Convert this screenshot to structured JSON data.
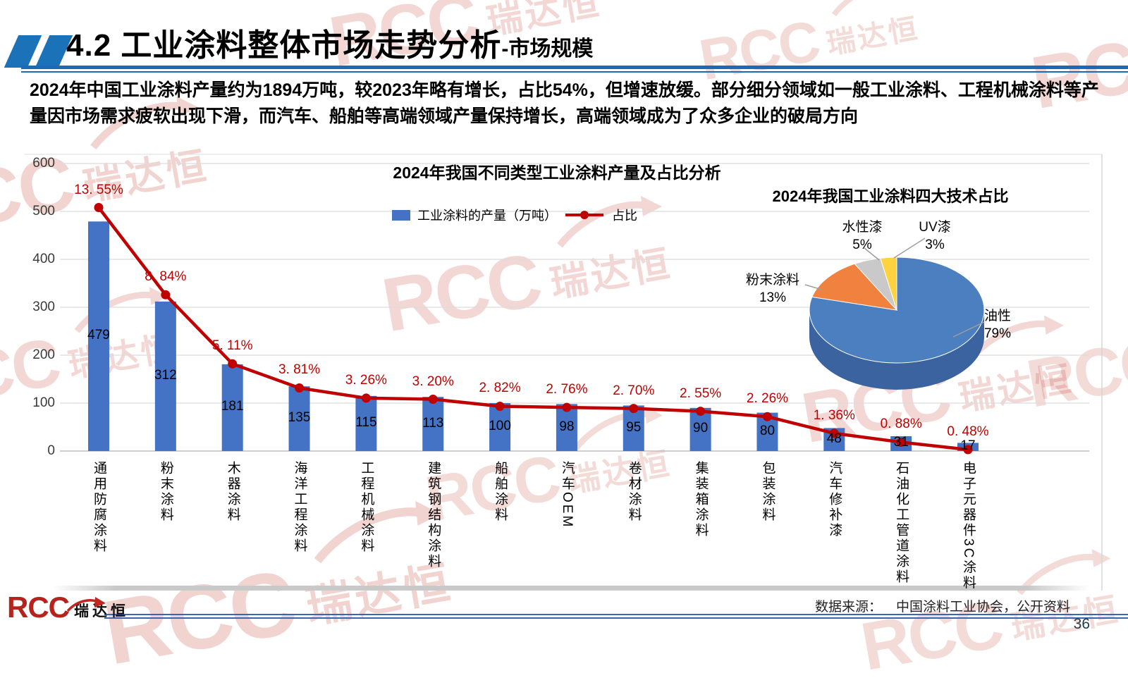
{
  "header": {
    "section_no": "4.2",
    "title": "工业涂料整体市场走势分析",
    "subtitle": "-市场规模",
    "accent_blue": "#1B6AB8"
  },
  "summary": "2024年中国工业涂料产量约为1894万吨，较2023年略有增长，占比54%，但增速放缓。部分细分领域如一般工业涂料、工程机械涂料等产量因市场需求疲软出现下滑，而汽车、船舶等高端领域产量保持增长，高端领域成为了众多企业的破局方向",
  "watermark": {
    "brand": "RCC",
    "brand_cn": "瑞达恒"
  },
  "chart_data": [
    {
      "type": "bar+line",
      "title": "2024年我国不同类型工业涂料产量及占比分析",
      "legend": [
        {
          "name": "工业涂料的产量（万吨）",
          "type": "bar",
          "color": "#4472C4"
        },
        {
          "name": "占比",
          "type": "line",
          "color": "#C00000"
        }
      ],
      "categories": [
        "通用防腐涂料",
        "粉末涂料",
        "木器涂料",
        "海洋工程涂料",
        "工程机械涂料",
        "建筑钢结构涂料",
        "船舶涂料",
        "汽车OEM",
        "卷材涂料",
        "集装箱涂料",
        "包装涂料",
        "汽车修补漆",
        "石油化工管道涂料",
        "电子元器件3C涂料"
      ],
      "series": [
        {
          "name": "工业涂料的产量（万吨）",
          "type": "bar",
          "values": [
            479,
            312,
            181,
            135,
            115,
            113,
            100,
            98,
            95,
            90,
            80,
            48,
            31,
            17
          ]
        },
        {
          "name": "占比",
          "type": "line",
          "values": [
            13.55,
            8.84,
            5.11,
            3.81,
            3.26,
            3.2,
            2.82,
            2.76,
            2.7,
            2.55,
            2.26,
            1.36,
            0.88,
            0.48
          ],
          "labels": [
            "13. 55%",
            "8. 84%",
            "5. 11%",
            "3. 81%",
            "3. 26%",
            "3. 20%",
            "2. 82%",
            "2. 76%",
            "2. 70%",
            "2. 55%",
            "2. 26%",
            "1. 36%",
            "0. 88%",
            "0. 48%"
          ]
        }
      ],
      "y_ticks": [
        0,
        100,
        200,
        300,
        400,
        500,
        600
      ],
      "ylim": [
        0,
        600
      ],
      "secondary_ylim": [
        0,
        16
      ],
      "grid": true,
      "legend_position": "top"
    },
    {
      "type": "pie",
      "style": "3d",
      "title": "2024年我国工业涂料四大技术占比",
      "slices": [
        {
          "label": "油性",
          "pct": 79,
          "display": "79%",
          "color": "#4C7FC0"
        },
        {
          "label": "粉末涂料",
          "pct": 13,
          "display": "13%",
          "color": "#F0813E"
        },
        {
          "label": "水性漆",
          "pct": 5,
          "display": "5%",
          "color": "#C9C9C9"
        },
        {
          "label": "UV漆",
          "pct": 3,
          "display": "3%",
          "color": "#FFD23F"
        }
      ]
    }
  ],
  "footer": {
    "logo": "RCC",
    "logo_cn": "瑞达恒",
    "source_label": "数据来源：",
    "source": "中国涂料工业协会，公开资料",
    "page": "36"
  }
}
